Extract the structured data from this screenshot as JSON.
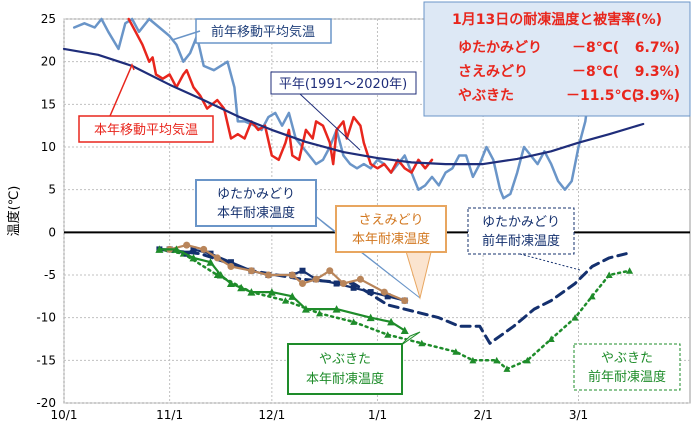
{
  "chart_data": {
    "type": "line",
    "ylabel": "温度(℃)",
    "ylim": [
      -20,
      25
    ],
    "yticks": [
      -20,
      -15,
      -10,
      -5,
      0,
      5,
      10,
      15,
      20,
      25
    ],
    "x_unit": "days since 10/1",
    "xlim": [
      0,
      182
    ],
    "xticks": [
      {
        "label": "10/1",
        "day": 0
      },
      {
        "label": "11/1",
        "day": 31
      },
      {
        "label": "12/1",
        "day": 61
      },
      {
        "label": "1/1",
        "day": 92
      },
      {
        "label": "2/1",
        "day": 123
      },
      {
        "label": "3/1",
        "day": 151
      }
    ],
    "grid": true,
    "series": [
      {
        "id": "prev_avg",
        "name": "前年移動平均気温",
        "color": "#6a95c8",
        "style": "solid",
        "points": [
          [
            3,
            24
          ],
          [
            6,
            24.5
          ],
          [
            9,
            24
          ],
          [
            11,
            25
          ],
          [
            13,
            23.5
          ],
          [
            16,
            21.5
          ],
          [
            18,
            24.5
          ],
          [
            20,
            25
          ],
          [
            22,
            23.5
          ],
          [
            25,
            25
          ],
          [
            28,
            24
          ],
          [
            31,
            23
          ],
          [
            33,
            22
          ],
          [
            35,
            20
          ],
          [
            37,
            21
          ],
          [
            39,
            23
          ],
          [
            41,
            19.5
          ],
          [
            44,
            19
          ],
          [
            46,
            19.5
          ],
          [
            48,
            20
          ],
          [
            50,
            17
          ],
          [
            51,
            13
          ],
          [
            53,
            13
          ],
          [
            56,
            12.5
          ],
          [
            58,
            12
          ],
          [
            60,
            13.5
          ],
          [
            62,
            14
          ],
          [
            64,
            12.5
          ],
          [
            66,
            14
          ],
          [
            68,
            11
          ],
          [
            70,
            10
          ],
          [
            72,
            9
          ],
          [
            74,
            8
          ],
          [
            76,
            8.5
          ],
          [
            78,
            10
          ],
          [
            80,
            12
          ],
          [
            82,
            9
          ],
          [
            84,
            8
          ],
          [
            86,
            7.5
          ],
          [
            88,
            8
          ],
          [
            90,
            7.5
          ],
          [
            92,
            8.5
          ],
          [
            94,
            8
          ],
          [
            96,
            7
          ],
          [
            98,
            8
          ],
          [
            100,
            9
          ],
          [
            102,
            7
          ],
          [
            104,
            5
          ],
          [
            106,
            5.5
          ],
          [
            108,
            6.5
          ],
          [
            110,
            5.5
          ],
          [
            112,
            7
          ],
          [
            114,
            7.5
          ],
          [
            116,
            9
          ],
          [
            118,
            9
          ],
          [
            120,
            6.5
          ],
          [
            122,
            8
          ],
          [
            124,
            10
          ],
          [
            126,
            8.5
          ],
          [
            128,
            5
          ],
          [
            129,
            4
          ],
          [
            131,
            4.5
          ],
          [
            133,
            7
          ],
          [
            135,
            10
          ],
          [
            137,
            9
          ],
          [
            139,
            8
          ],
          [
            141,
            9.5
          ],
          [
            143,
            8
          ],
          [
            145,
            6
          ],
          [
            147,
            5
          ],
          [
            149,
            6
          ],
          [
            151,
            10
          ],
          [
            153,
            13
          ],
          [
            154,
            16
          ]
        ]
      },
      {
        "id": "cur_avg",
        "name": "本年移動平均気温",
        "color": "#e8261d",
        "style": "solid",
        "points": [
          [
            19,
            25
          ],
          [
            21,
            23.5
          ],
          [
            23,
            22
          ],
          [
            25,
            20
          ],
          [
            26,
            20.5
          ],
          [
            27,
            18.5
          ],
          [
            29,
            18
          ],
          [
            31,
            18.5
          ],
          [
            33,
            17
          ],
          [
            35,
            18.5
          ],
          [
            36,
            19
          ],
          [
            38,
            17
          ],
          [
            40,
            16
          ],
          [
            42,
            14.5
          ],
          [
            45,
            15.5
          ],
          [
            47,
            14.5
          ],
          [
            49,
            11
          ],
          [
            51,
            11.5
          ],
          [
            53,
            11
          ],
          [
            55,
            13
          ],
          [
            57,
            12
          ],
          [
            59,
            12.5
          ],
          [
            61,
            9
          ],
          [
            63,
            8.5
          ],
          [
            65,
            10.5
          ],
          [
            66,
            12
          ],
          [
            67,
            9
          ],
          [
            69,
            8.5
          ],
          [
            71,
            12
          ],
          [
            73,
            11
          ],
          [
            74,
            13
          ],
          [
            76,
            12.5
          ],
          [
            78,
            10.5
          ],
          [
            79,
            8
          ],
          [
            80,
            12
          ],
          [
            82,
            13
          ],
          [
            83,
            11
          ],
          [
            85,
            13.5
          ],
          [
            87,
            12.5
          ],
          [
            88,
            10.5
          ],
          [
            90,
            8
          ],
          [
            92,
            7.5
          ],
          [
            94,
            8
          ],
          [
            96,
            7
          ],
          [
            98,
            8.5
          ],
          [
            100,
            7.5
          ],
          [
            102,
            7
          ],
          [
            104,
            8.5
          ],
          [
            106,
            7.5
          ],
          [
            108,
            8.5
          ]
        ]
      },
      {
        "id": "normal",
        "name": "平年(1991～2020年)",
        "color": "#1f2d7a",
        "style": "solid",
        "points": [
          [
            0,
            21.5
          ],
          [
            10,
            20.8
          ],
          [
            20,
            19.5
          ],
          [
            31,
            17.3
          ],
          [
            41,
            15.5
          ],
          [
            51,
            13.6
          ],
          [
            61,
            12
          ],
          [
            71,
            10.6
          ],
          [
            82,
            9.4
          ],
          [
            92,
            8.7
          ],
          [
            102,
            8.2
          ],
          [
            112,
            8
          ],
          [
            123,
            8
          ],
          [
            133,
            8.6
          ],
          [
            143,
            9.5
          ],
          [
            151,
            10.5
          ],
          [
            160,
            11.5
          ],
          [
            170,
            12.7
          ]
        ]
      },
      {
        "id": "yutaka_prev",
        "name": "ゆたかみどり前年耐凍温度",
        "color": "#14306e",
        "style": "dashed",
        "points": [
          [
            28,
            -2
          ],
          [
            40,
            -2.5
          ],
          [
            55,
            -4.5
          ],
          [
            70,
            -5.5
          ],
          [
            85,
            -6
          ],
          [
            95,
            -8.5
          ],
          [
            105,
            -9.5
          ],
          [
            110,
            -10
          ],
          [
            116,
            -11
          ],
          [
            122,
            -11
          ],
          [
            125,
            -13
          ],
          [
            132,
            -11
          ],
          [
            138,
            -9
          ],
          [
            143,
            -8
          ],
          [
            150,
            -6
          ],
          [
            155,
            -4
          ],
          [
            160,
            -3
          ],
          [
            165,
            -2.5
          ]
        ]
      },
      {
        "id": "yabu_prev",
        "name": "やぶきた前年耐凍温度",
        "color": "#1e8c2a",
        "style": "dotted",
        "points": [
          [
            28,
            -2
          ],
          [
            35,
            -2.5
          ],
          [
            45,
            -5
          ],
          [
            55,
            -7
          ],
          [
            65,
            -8
          ],
          [
            75,
            -9.5
          ],
          [
            85,
            -10.5
          ],
          [
            95,
            -12
          ],
          [
            105,
            -13
          ],
          [
            115,
            -14
          ],
          [
            120,
            -15
          ],
          [
            127,
            -15
          ],
          [
            130,
            -16
          ],
          [
            136,
            -15
          ],
          [
            143,
            -12.5
          ],
          [
            150,
            -10
          ],
          [
            155,
            -7.5
          ],
          [
            160,
            -5
          ],
          [
            166,
            -4.5
          ]
        ]
      },
      {
        "id": "yutaka_cur",
        "name": "ゆたかみどり本年耐凍温度",
        "color": "#14306e",
        "style": "solid-marker",
        "points": [
          [
            28,
            -2
          ],
          [
            31,
            -2
          ],
          [
            36,
            -2.5
          ],
          [
            38,
            -2
          ],
          [
            43,
            -2.5
          ],
          [
            49,
            -3.5
          ],
          [
            55,
            -4.5
          ],
          [
            60,
            -5
          ],
          [
            67,
            -5
          ],
          [
            70,
            -4.5
          ],
          [
            74,
            -5.5
          ],
          [
            80,
            -6
          ],
          [
            85,
            -6.5
          ],
          [
            90,
            -7
          ],
          [
            95,
            -7.5
          ],
          [
            100,
            -8
          ]
        ]
      },
      {
        "id": "saemi_cur",
        "name": "さえみどり本年耐凍温度",
        "color": "#b9855a",
        "style": "solid-marker",
        "points": [
          [
            31,
            -2
          ],
          [
            36,
            -1.5
          ],
          [
            41,
            -2
          ],
          [
            45,
            -3
          ],
          [
            49,
            -4
          ],
          [
            55,
            -4.5
          ],
          [
            60,
            -5
          ],
          [
            67,
            -5
          ],
          [
            70,
            -6
          ],
          [
            74,
            -5.5
          ],
          [
            78,
            -4.5
          ],
          [
            82,
            -6
          ],
          [
            87,
            -5.5
          ],
          [
            94,
            -7
          ],
          [
            100,
            -8
          ]
        ]
      },
      {
        "id": "yabu_cur",
        "name": "やぶきた本年耐凍温度",
        "color": "#1e8c2a",
        "style": "solid-marker",
        "points": [
          [
            28,
            -2
          ],
          [
            33,
            -2
          ],
          [
            38,
            -3
          ],
          [
            43,
            -3.5
          ],
          [
            46,
            -5
          ],
          [
            49,
            -6
          ],
          [
            52,
            -6.5
          ],
          [
            55,
            -7
          ],
          [
            61,
            -7
          ],
          [
            67,
            -7.5
          ],
          [
            71,
            -9
          ],
          [
            80,
            -9
          ],
          [
            90,
            -10
          ],
          [
            96,
            -10.5
          ],
          [
            100,
            -11.5
          ]
        ]
      }
    ]
  },
  "labels": {
    "prev_avg": "前年移動平均気温",
    "normal": "平年(1991～2020年)",
    "cur_avg": "本年移動平均気温",
    "yutaka_cur_l1": "ゆたかみどり",
    "yutaka_cur_l2": "本年耐凍温度",
    "saemi_cur_l1": "さえみどり",
    "saemi_cur_l2": "本年耐凍温度",
    "yutaka_prev_l1": "ゆたかみどり",
    "yutaka_prev_l2": "前年耐凍温度",
    "yabu_cur_l1": "やぶきた",
    "yabu_cur_l2": "本年耐凍温度",
    "yabu_prev_l1": "やぶきた",
    "yabu_prev_l2": "前年耐凍温度"
  },
  "summary": {
    "title": "1月13日の耐凍温度と被害率(%)",
    "rows": [
      {
        "variety": "ゆたかみどり",
        "temp": "－8℃(",
        "rate": "6.7%)"
      },
      {
        "variety": "さえみどり",
        "temp": "－8℃(",
        "rate": "9.3%)"
      },
      {
        "variety": "やぶきた",
        "temp": "－11.5℃(",
        "rate": "3.9%)"
      }
    ]
  }
}
